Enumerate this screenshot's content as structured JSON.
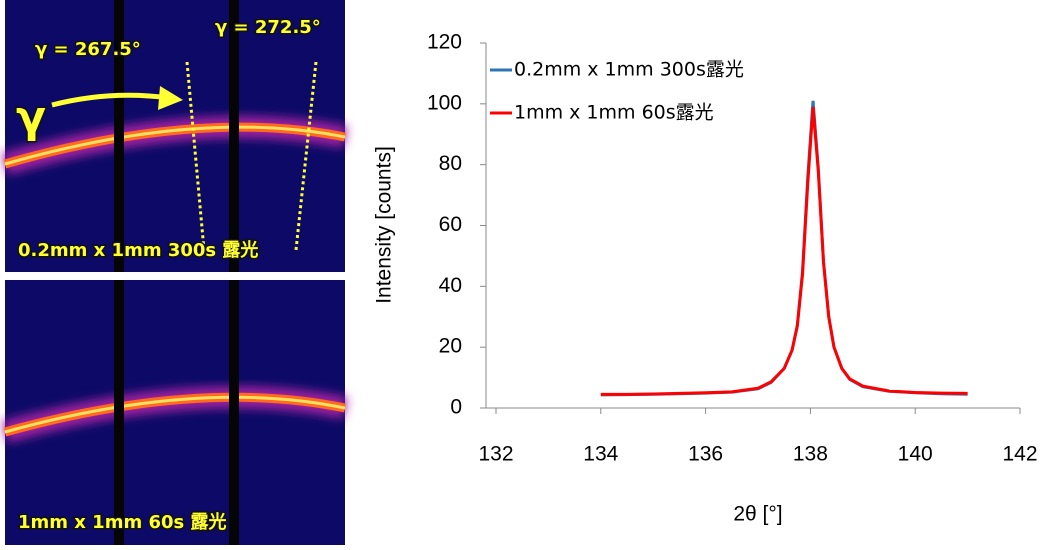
{
  "panels": [
    {
      "label": "0.2mm x 1mm 300s 露光",
      "annotations": [
        "γ = 267.5°",
        "γ = 272.5°",
        "γ"
      ]
    },
    {
      "label": "1mm x 1mm 60s 露光"
    }
  ],
  "chart_data": {
    "type": "line",
    "x_label": "2θ [°]",
    "y_label": "Intensity [counts]",
    "x": [
      134,
      134.5,
      135,
      135.5,
      136,
      136.5,
      137,
      137.25,
      137.5,
      137.65,
      137.75,
      137.85,
      137.95,
      138.05,
      138.15,
      138.25,
      138.35,
      138.45,
      138.6,
      138.75,
      139,
      139.5,
      140,
      140.5,
      141
    ],
    "series": [
      {
        "name": "0.2mm x 1mm 300s露光",
        "color": "#2e75b6",
        "values": [
          4.3,
          4.4,
          4.5,
          4.7,
          4.9,
          5.2,
          6.3,
          8.4,
          13,
          19,
          27,
          45,
          76,
          101,
          79,
          48,
          30,
          20,
          13,
          9.4,
          7,
          5.5,
          5,
          4.7,
          4.5
        ]
      },
      {
        "name": "1mm x 1mm 60s露光",
        "color": "#ff0000",
        "values": [
          4.5,
          4.5,
          4.6,
          4.8,
          5,
          5.3,
          6.5,
          8.6,
          13,
          19,
          27,
          44,
          74,
          99,
          78,
          48,
          30,
          20,
          13,
          9.6,
          7.2,
          5.6,
          5.1,
          4.9,
          4.8
        ]
      }
    ],
    "xlim": [
      132,
      142
    ],
    "xticks": [
      132,
      134,
      136,
      138,
      140,
      142
    ],
    "ylim": [
      0,
      120
    ],
    "yticks": [
      0,
      20,
      40,
      60,
      80,
      100,
      120
    ],
    "grid": false,
    "legend": "upper-left"
  }
}
